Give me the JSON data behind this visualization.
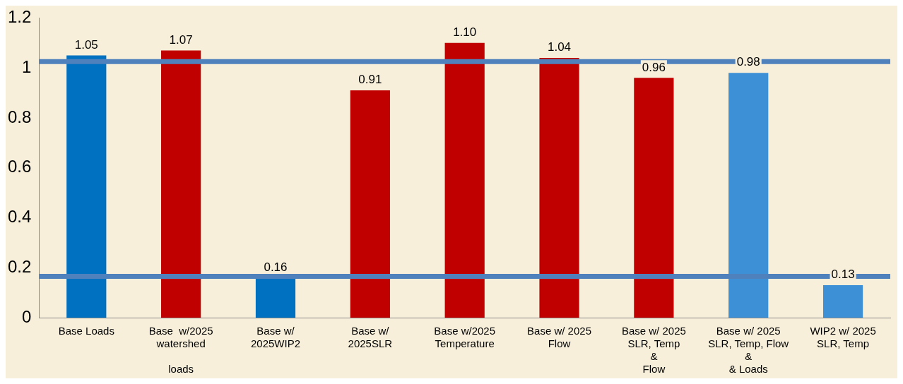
{
  "chart_data": {
    "type": "bar",
    "categories": [
      "Base Loads",
      "Base  w/2025\nwatershed\n\nloads",
      "Base w/\n2025WIP2",
      "Base w/\n2025SLR",
      "Base w/2025\nTemperature",
      "Base w/ 2025\nFlow",
      "Base w/ 2025\nSLR, Temp\n&\nFlow",
      "Base w/ 2025\nSLR, Temp, Flow\n&\n& Loads",
      "WIP2 w/ 2025\nSLR, Temp"
    ],
    "values": [
      1.05,
      1.07,
      0.16,
      0.91,
      1.1,
      1.04,
      0.96,
      0.98,
      0.13
    ],
    "colors": [
      "#0070c0",
      "#c00000",
      "#0070c0",
      "#c00000",
      "#c00000",
      "#c00000",
      "#c00000",
      "#3d8fd6",
      "#3d8fd6"
    ],
    "value_labels": [
      "1.05",
      "1.07",
      "0.16",
      "0.91",
      "1.10",
      "1.04",
      "0.96",
      "0.98",
      "0.13"
    ],
    "ylim": [
      0,
      1.2
    ],
    "yticks": [
      0,
      0.2,
      0.4,
      0.6,
      0.8,
      1,
      1.2
    ],
    "ref_lines": [
      {
        "axis": "y",
        "value": 1.025,
        "color": "#4f81bd"
      },
      {
        "axis": "y",
        "value": 0.165,
        "color": "#4f81bd"
      }
    ],
    "grid": false,
    "legend": false
  }
}
